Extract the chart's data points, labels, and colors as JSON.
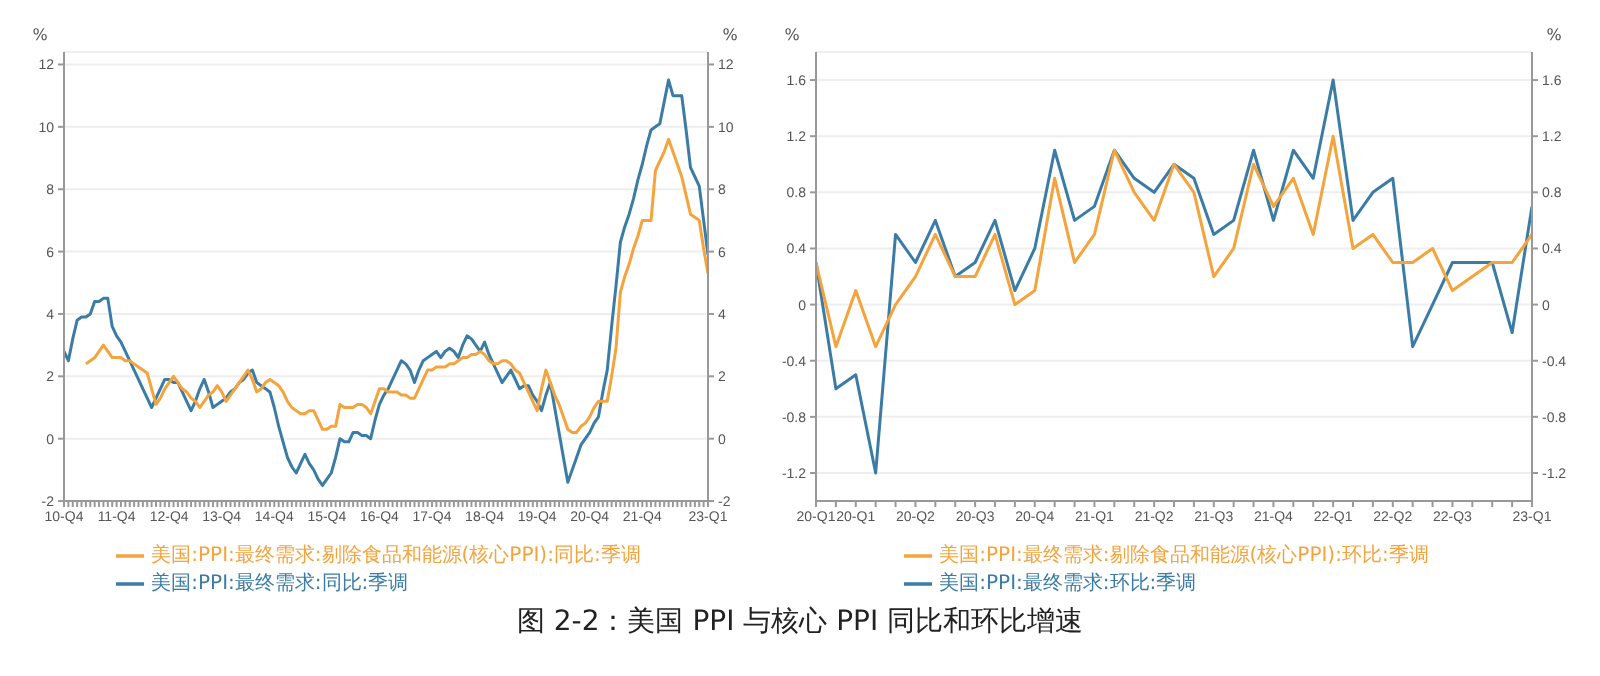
{
  "chart_data": [
    {
      "type": "line",
      "title": "图 2-2：美国 PPI 与核心 PPI 同比和环比增速",
      "ylabel": "%",
      "y2label": "%",
      "categories": [
        "10-Q4",
        null,
        null,
        null,
        null,
        null,
        null,
        null,
        null,
        null,
        null,
        null,
        "11-Q4",
        null,
        null,
        null,
        null,
        null,
        null,
        null,
        null,
        null,
        null,
        null,
        "12-Q4",
        null,
        null,
        null,
        null,
        null,
        null,
        null,
        null,
        null,
        null,
        null,
        "13-Q4",
        null,
        null,
        null,
        null,
        null,
        null,
        null,
        null,
        null,
        null,
        null,
        "14-Q4",
        null,
        null,
        null,
        null,
        null,
        null,
        null,
        null,
        null,
        null,
        null,
        "15-Q4",
        null,
        null,
        null,
        null,
        null,
        null,
        null,
        null,
        null,
        null,
        null,
        "16-Q4",
        null,
        null,
        null,
        null,
        null,
        null,
        null,
        null,
        null,
        null,
        null,
        "17-Q4",
        null,
        null,
        null,
        null,
        null,
        null,
        null,
        null,
        null,
        null,
        null,
        "18-Q4",
        null,
        null,
        null,
        null,
        null,
        null,
        null,
        null,
        null,
        null,
        null,
        "19-Q4",
        null,
        null,
        null,
        null,
        null,
        null,
        null,
        null,
        null,
        null,
        null,
        "20-Q4",
        null,
        null,
        null,
        null,
        null,
        null,
        null,
        null,
        null,
        null,
        null,
        "21-Q4",
        null,
        null,
        null,
        null,
        null,
        null,
        null,
        null,
        null,
        null,
        null,
        null,
        null,
        null,
        "23-Q1"
      ],
      "ylim": [
        -2,
        12.4
      ],
      "yticks": [
        -2,
        0,
        2,
        4,
        6,
        8,
        10,
        12
      ],
      "y2lim": [
        -2,
        12.4
      ],
      "y2ticks": [
        -2,
        0,
        2,
        4,
        6,
        8,
        10,
        12
      ],
      "grid": "y",
      "legend": "bottom",
      "marker": "none",
      "line_style": "solid",
      "series": [
        {
          "name": "美国:PPI:最终需求:同比:季调",
          "color": "#3a7ca5",
          "values": [
            2.8,
            2.5,
            3.2,
            3.8,
            3.9,
            3.9,
            4.0,
            4.4,
            4.4,
            4.5,
            4.5,
            3.6,
            3.3,
            3.1,
            2.8,
            2.5,
            2.2,
            1.9,
            1.6,
            1.3,
            1.0,
            1.3,
            1.6,
            1.9,
            1.9,
            1.8,
            1.8,
            1.5,
            1.2,
            0.9,
            1.2,
            1.6,
            1.9,
            1.5,
            1.0,
            1.1,
            1.2,
            1.3,
            1.5,
            1.6,
            1.8,
            1.9,
            2.1,
            2.2,
            1.8,
            1.7,
            1.6,
            1.5,
            1.0,
            0.4,
            -0.1,
            -0.6,
            -0.9,
            -1.1,
            -0.8,
            -0.5,
            -0.8,
            -1.0,
            -1.3,
            -1.5,
            -1.3,
            -1.1,
            -0.6,
            0.0,
            -0.1,
            -0.1,
            0.2,
            0.2,
            0.1,
            0.1,
            0.0,
            0.6,
            1.1,
            1.4,
            1.6,
            1.9,
            2.2,
            2.5,
            2.4,
            2.2,
            1.8,
            2.2,
            2.5,
            2.6,
            2.7,
            2.8,
            2.6,
            2.8,
            2.9,
            2.8,
            2.6,
            3.0,
            3.3,
            3.2,
            3.0,
            2.8,
            3.1,
            2.7,
            2.4,
            2.1,
            1.8,
            2.0,
            2.2,
            1.9,
            1.6,
            1.7,
            1.7,
            1.4,
            1.2,
            0.9,
            1.4,
            1.8,
            1.0,
            0.2,
            -0.6,
            -1.4,
            -1.0,
            -0.6,
            -0.2,
            0.0,
            0.2,
            0.5,
            0.7,
            1.5,
            2.2,
            3.6,
            4.9,
            6.3,
            6.8,
            7.2,
            7.7,
            8.3,
            8.8,
            9.4,
            9.9,
            10.0,
            10.1,
            10.8,
            11.5,
            11.0,
            11.0,
            11.0,
            9.9,
            8.7,
            8.4,
            8.1,
            7.0,
            5.9
          ]
        },
        {
          "name": "美国:PPI:最终需求:剔除食品和能源(核心PPI):同比:季调",
          "color": "#f5a33c",
          "values": [
            null,
            null,
            null,
            null,
            null,
            2.4,
            2.5,
            2.6,
            2.8,
            3.0,
            2.8,
            2.6,
            2.6,
            2.6,
            2.5,
            2.5,
            2.4,
            2.3,
            2.2,
            2.1,
            1.6,
            1.1,
            1.3,
            1.6,
            1.8,
            2.0,
            1.8,
            1.6,
            1.5,
            1.3,
            1.2,
            1.0,
            1.2,
            1.4,
            1.5,
            1.7,
            1.5,
            1.2,
            1.4,
            1.6,
            1.8,
            2.0,
            2.2,
            1.9,
            1.5,
            1.6,
            1.8,
            1.9,
            1.8,
            1.7,
            1.5,
            1.2,
            1.0,
            0.9,
            0.8,
            0.8,
            0.9,
            0.9,
            0.6,
            0.3,
            0.3,
            0.4,
            0.4,
            1.1,
            1.0,
            1.0,
            1.0,
            1.1,
            1.1,
            1.0,
            0.8,
            1.2,
            1.6,
            1.6,
            1.5,
            1.5,
            1.5,
            1.4,
            1.4,
            1.3,
            1.3,
            1.6,
            1.9,
            2.2,
            2.2,
            2.3,
            2.3,
            2.3,
            2.4,
            2.4,
            2.5,
            2.6,
            2.6,
            2.7,
            2.7,
            2.8,
            2.7,
            2.5,
            2.4,
            2.4,
            2.5,
            2.5,
            2.4,
            2.2,
            2.1,
            1.8,
            1.5,
            1.2,
            0.9,
            1.6,
            2.2,
            1.8,
            1.4,
            1.1,
            0.7,
            0.3,
            0.2,
            0.2,
            0.4,
            0.5,
            0.7,
            1.0,
            1.2,
            1.2,
            1.2,
            2.0,
            2.9,
            4.7,
            5.2,
            5.6,
            6.1,
            6.5,
            7.0,
            7.0,
            7.0,
            8.6,
            8.9,
            9.2,
            9.6,
            9.2,
            8.8,
            8.4,
            7.8,
            7.2,
            7.1,
            7.0,
            6.1,
            5.3
          ]
        }
      ]
    },
    {
      "type": "line",
      "ylabel": "%",
      "y2label": "%",
      "categories": [
        "20-Q1",
        null,
        "20-Q1",
        null,
        null,
        "20-Q2",
        null,
        null,
        "20-Q3",
        null,
        null,
        "20-Q4",
        null,
        null,
        "21-Q1",
        null,
        null,
        "21-Q2",
        null,
        null,
        "21-Q3",
        null,
        null,
        "21-Q4",
        null,
        null,
        "22-Q1",
        null,
        null,
        "22-Q2",
        null,
        null,
        "22-Q3",
        null,
        null,
        null,
        "23-Q1"
      ],
      "ylim": [
        -1.4,
        1.8
      ],
      "yticks": [
        -1.2,
        -0.8,
        -0.4,
        0,
        0.4,
        0.8,
        1.2,
        1.6
      ],
      "y2lim": [
        -1.4,
        1.8
      ],
      "y2ticks": [
        -1.2,
        -0.8,
        -0.4,
        0,
        0.4,
        0.8,
        1.2,
        1.6
      ],
      "grid": "y",
      "legend": "bottom",
      "marker": "none",
      "line_style": "solid",
      "series": [
        {
          "name": "美国:PPI:最终需求:环比:季调",
          "color": "#3a7ca5",
          "values": [
            0.3,
            -0.6,
            -0.5,
            -1.2,
            0.5,
            0.3,
            0.6,
            0.2,
            0.3,
            0.6,
            0.1,
            0.4,
            1.1,
            0.6,
            0.7,
            1.1,
            0.9,
            0.8,
            1.0,
            0.9,
            0.5,
            0.6,
            1.1,
            0.6,
            1.1,
            0.9,
            1.6,
            0.6,
            0.8,
            0.9,
            -0.3,
            0.0,
            0.3,
            0.3,
            0.3,
            -0.2,
            0.7
          ]
        },
        {
          "name": "美国:PPI:最终需求:剔除食品和能源(核心PPI):环比:季调",
          "color": "#f5a33c",
          "values": [
            0.3,
            -0.3,
            0.1,
            -0.3,
            0.0,
            0.2,
            0.5,
            0.2,
            0.2,
            0.5,
            0.0,
            0.1,
            0.9,
            0.3,
            0.5,
            1.1,
            0.8,
            0.6,
            1.0,
            0.8,
            0.2,
            0.4,
            1.0,
            0.7,
            0.9,
            0.5,
            1.2,
            0.4,
            0.5,
            0.3,
            0.3,
            0.4,
            0.1,
            0.2,
            0.3,
            0.3,
            0.5
          ]
        }
      ]
    }
  ]
}
